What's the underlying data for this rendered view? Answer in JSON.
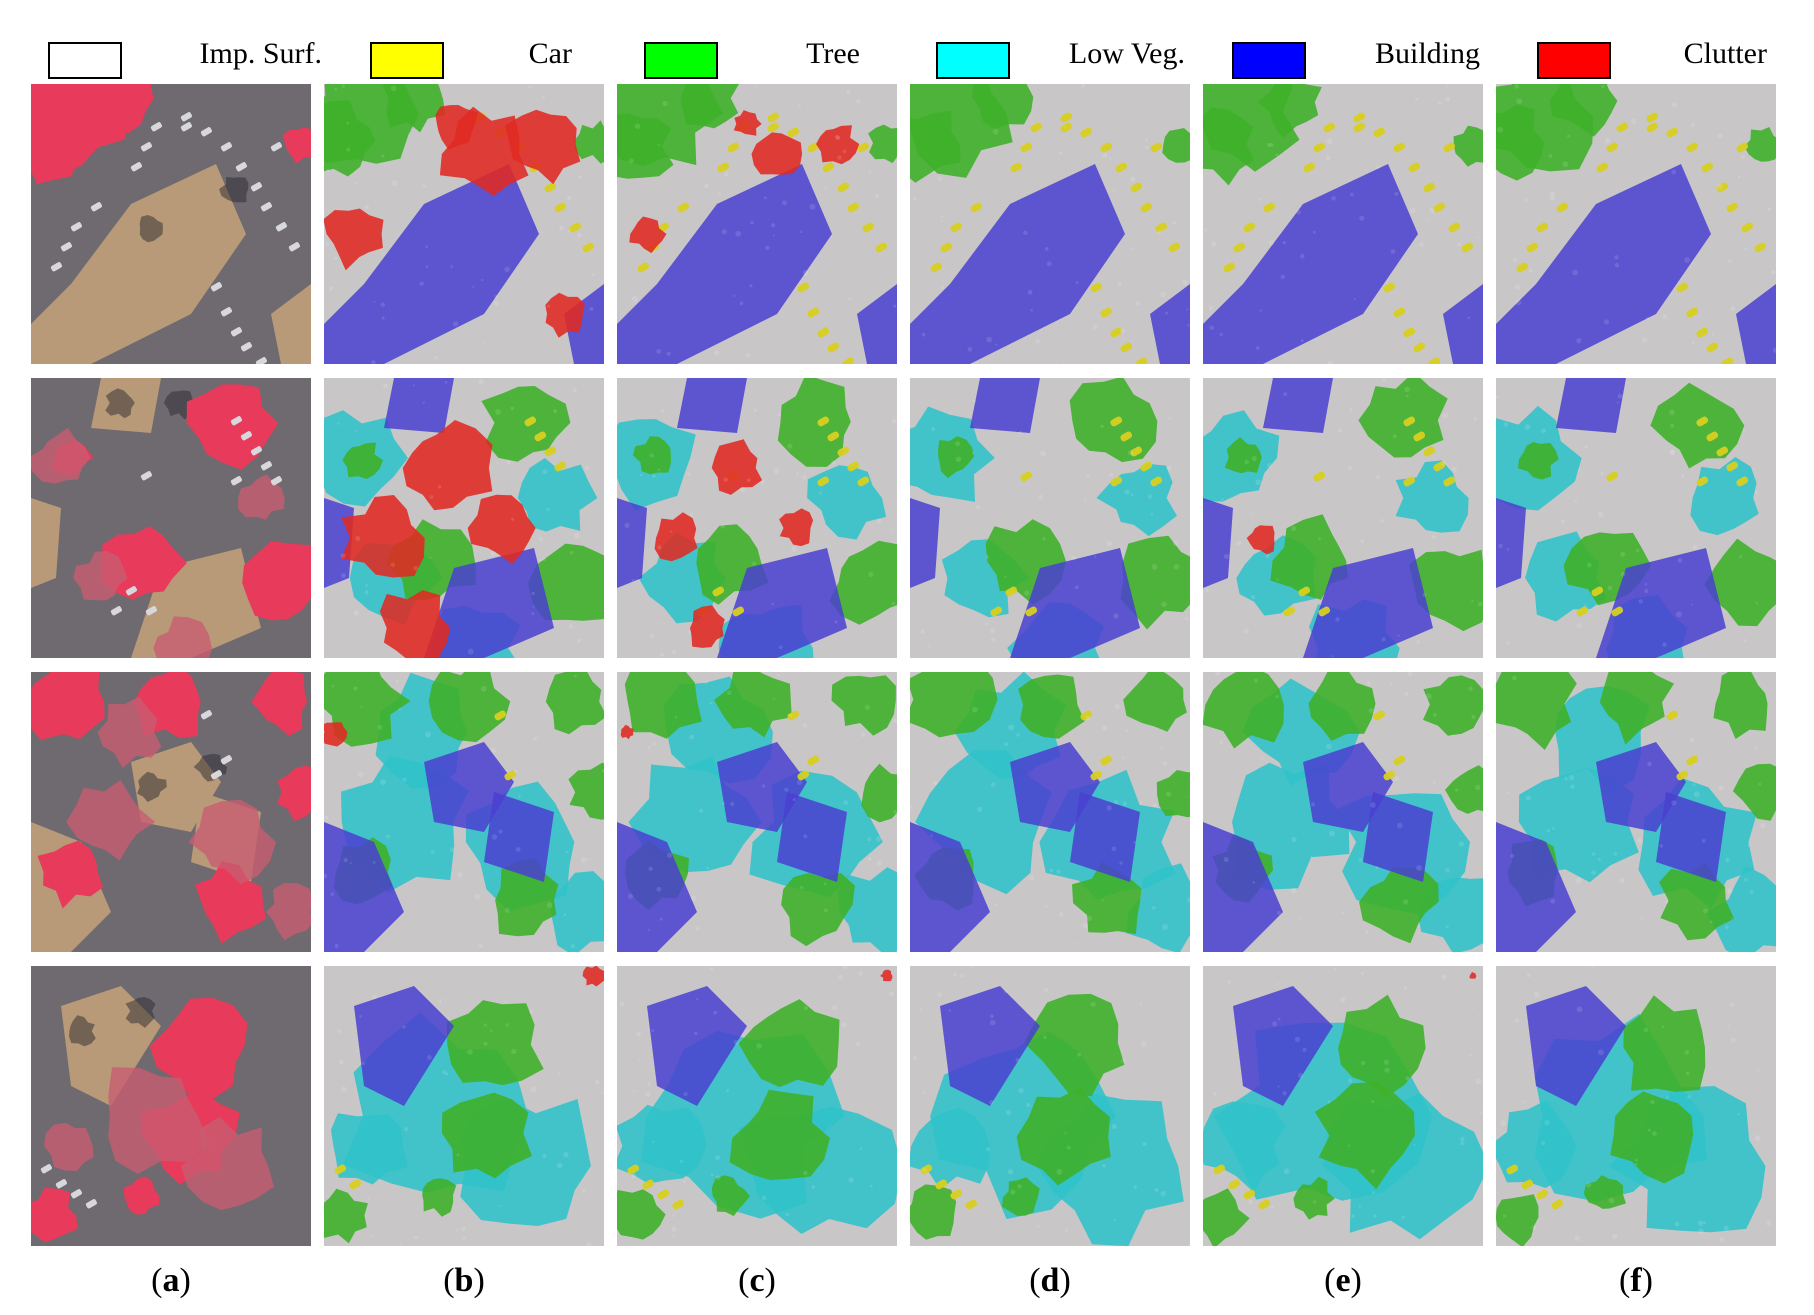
{
  "legend": [
    {
      "label": "Imp. Surf.",
      "color": "#ffffff"
    },
    {
      "label": "Car",
      "color": "#ffff00"
    },
    {
      "label": "Tree",
      "color": "#00ff00"
    },
    {
      "label": "Low Veg.",
      "color": "#00ffff"
    },
    {
      "label": "Building",
      "color": "#0000ff"
    },
    {
      "label": "Clutter",
      "color": "#ff0000"
    }
  ],
  "columns": [
    {
      "open": "(",
      "letter": "a",
      "close": ")"
    },
    {
      "open": "(",
      "letter": "b",
      "close": ")"
    },
    {
      "open": "(",
      "letter": "c",
      "close": ")"
    },
    {
      "open": "(",
      "letter": "d",
      "close": ")"
    },
    {
      "open": "(",
      "letter": "e",
      "close": ")"
    },
    {
      "open": "(",
      "letter": "f",
      "close": ")"
    }
  ],
  "overlay_colors": {
    "imp_surf": "#c9c6c8",
    "car": "#d8d020",
    "tree": "#3fb02a",
    "low_veg": "#2fc3c8",
    "building": "#4a3fd0",
    "clutter": "#e02a22"
  },
  "irrg_colors": {
    "vegetation": "#e83a5a",
    "road": "#6e6a70",
    "roof": "#b89a78",
    "shadow": "#2a2a30"
  }
}
